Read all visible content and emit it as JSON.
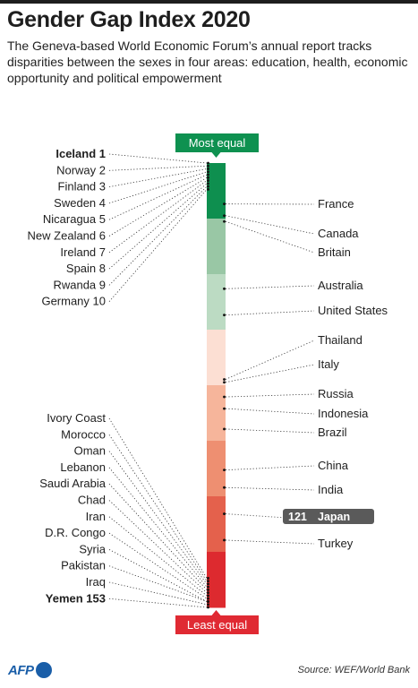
{
  "title": "Gender Gap Index 2020",
  "subtitle": "The Geneva-based World Economic Forum’s annual report tracks disparities between the sexes in four areas: education, health, economic opportunity and political empowerment",
  "source": "Source: WEF/World Bank",
  "logo": "AFP",
  "colors": {
    "most_equal": "#0e9150",
    "least_equal": "#e02a33",
    "highlight": "#5a5a5a",
    "bands": [
      "#0e8f4f",
      "#99c7a5",
      "#bcdbc3",
      "#fcdfd3",
      "#f6b59b",
      "#ee8f71",
      "#e4614c",
      "#dd2a2f"
    ]
  },
  "chart_data": {
    "type": "rank-scale",
    "rank_range": [
      1,
      153
    ],
    "top_label": "Most equal",
    "bottom_label": "Least equal",
    "top_ranked": [
      {
        "country": "Iceland",
        "rank": 1,
        "label": "Iceland 1",
        "bold": true
      },
      {
        "country": "Norway",
        "rank": 2,
        "label": "Norway 2"
      },
      {
        "country": "Finland",
        "rank": 3,
        "label": "Finland 3"
      },
      {
        "country": "Sweden",
        "rank": 4,
        "label": "Sweden 4"
      },
      {
        "country": "Nicaragua",
        "rank": 5,
        "label": "Nicaragua 5"
      },
      {
        "country": "New Zealand",
        "rank": 6,
        "label": "New Zealand 6"
      },
      {
        "country": "Ireland",
        "rank": 7,
        "label": "Ireland 7"
      },
      {
        "country": "Spain",
        "rank": 8,
        "label": "Spain 8"
      },
      {
        "country": "Rwanda",
        "rank": 9,
        "label": "Rwanda 9"
      },
      {
        "country": "Germany",
        "rank": 10,
        "label": "Germany 10"
      }
    ],
    "bottom_ranked": [
      {
        "country": "Ivory Coast",
        "rank": 143,
        "label": "Ivory Coast"
      },
      {
        "country": "Morocco",
        "rank": 144,
        "label": "Morocco"
      },
      {
        "country": "Oman",
        "rank": 145,
        "label": "Oman"
      },
      {
        "country": "Lebanon",
        "rank": 146,
        "label": "Lebanon"
      },
      {
        "country": "Saudi Arabia",
        "rank": 147,
        "label": "Saudi Arabia"
      },
      {
        "country": "Chad",
        "rank": 148,
        "label": "Chad"
      },
      {
        "country": "Iran",
        "rank": 149,
        "label": "Iran"
      },
      {
        "country": "D.R. Congo",
        "rank": 150,
        "label": "D.R. Congo"
      },
      {
        "country": "Syria",
        "rank": 151,
        "label": "Syria"
      },
      {
        "country": "Pakistan",
        "rank": 151,
        "label": "Pakistan"
      },
      {
        "country": "Iraq",
        "rank": 152,
        "label": "Iraq"
      },
      {
        "country": "Yemen",
        "rank": 153,
        "label": "Yemen 153",
        "bold": true
      }
    ],
    "others": [
      {
        "country": "France",
        "rank": 15,
        "label": "France"
      },
      {
        "country": "Canada",
        "rank": 19,
        "label": "Canada"
      },
      {
        "country": "Britain",
        "rank": 21,
        "label": "Britain"
      },
      {
        "country": "Australia",
        "rank": 44,
        "label": "Australia"
      },
      {
        "country": "United States",
        "rank": 53,
        "label": "United States"
      },
      {
        "country": "Thailand",
        "rank": 75,
        "label": "Thailand"
      },
      {
        "country": "Italy",
        "rank": 76,
        "label": "Italy"
      },
      {
        "country": "Russia",
        "rank": 81,
        "label": "Russia"
      },
      {
        "country": "Indonesia",
        "rank": 85,
        "label": "Indonesia"
      },
      {
        "country": "Brazil",
        "rank": 92,
        "label": "Brazil"
      },
      {
        "country": "China",
        "rank": 106,
        "label": "China"
      },
      {
        "country": "India",
        "rank": 112,
        "label": "India"
      },
      {
        "country": "Japan",
        "rank": 121,
        "label": "Japan",
        "rank_label": "121",
        "highlight": true
      },
      {
        "country": "Turkey",
        "rank": 130,
        "label": "Turkey"
      }
    ]
  }
}
